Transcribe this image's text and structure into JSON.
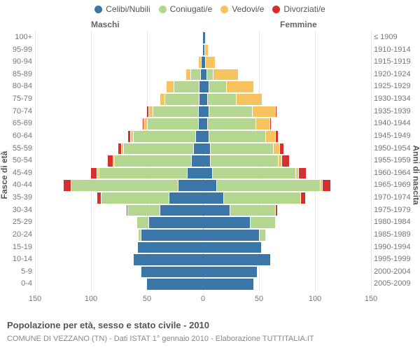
{
  "legend": [
    {
      "label": "Celibi/Nubili",
      "color": "#3b76a8"
    },
    {
      "label": "Coniugati/e",
      "color": "#b4d690"
    },
    {
      "label": "Vedovi/e",
      "color": "#f7c35e"
    },
    {
      "label": "Divorziati/e",
      "color": "#d62f2f"
    }
  ],
  "sex_left_label": "Maschi",
  "sex_right_label": "Femmine",
  "y_axis_left_title": "Fasce di età",
  "y_axis_right_title": "Anni di nascita",
  "title": "Popolazione per età, sesso e stato civile - 2010",
  "subtitle": "COMUNE DI VEZZANO (TN) - Dati ISTAT 1° gennaio 2010 - Elaborazione TUTTITALIA.IT",
  "chart": {
    "type": "population-pyramid",
    "x_max": 150,
    "x_ticks": [
      -150,
      -100,
      -50,
      0,
      50,
      100,
      150
    ],
    "x_tick_labels": [
      "150",
      "100",
      "50",
      "0",
      "50",
      "100",
      "150"
    ],
    "segment_order": [
      "celibi",
      "coniugati",
      "vedovi",
      "divorziati"
    ],
    "segment_colors": {
      "celibi": "#3b76a8",
      "coniugati": "#b4d690",
      "vedovi": "#f7c35e",
      "divorziati": "#d62f2f"
    },
    "bar_border": "#ffffff",
    "background": "#ffffff",
    "grid_color": "#e5e5e5",
    "center_line_color": "#bbbbbb",
    "label_font_size": 11,
    "rows": [
      {
        "age": "100+",
        "birth": "≤ 1909",
        "m": {
          "celibi": 0,
          "coniugati": 0,
          "vedovi": 0,
          "divorziati": 0
        },
        "f": {
          "celibi": 2,
          "coniugati": 0,
          "vedovi": 0,
          "divorziati": 0
        }
      },
      {
        "age": "95-99",
        "birth": "1910-1914",
        "m": {
          "celibi": 0,
          "coniugati": 0,
          "vedovi": 0,
          "divorziati": 0
        },
        "f": {
          "celibi": 1,
          "coniugati": 0,
          "vedovi": 3,
          "divorziati": 0
        }
      },
      {
        "age": "90-94",
        "birth": "1915-1919",
        "m": {
          "celibi": 1,
          "coniugati": 0,
          "vedovi": 2,
          "divorziati": 0
        },
        "f": {
          "celibi": 2,
          "coniugati": 0,
          "vedovi": 8,
          "divorziati": 0
        }
      },
      {
        "age": "85-89",
        "birth": "1920-1924",
        "m": {
          "celibi": 2,
          "coniugati": 8,
          "vedovi": 4,
          "divorziati": 0
        },
        "f": {
          "celibi": 3,
          "coniugati": 5,
          "vedovi": 22,
          "divorziati": 0
        }
      },
      {
        "age": "80-84",
        "birth": "1925-1929",
        "m": {
          "celibi": 3,
          "coniugati": 22,
          "vedovi": 6,
          "divorziati": 0
        },
        "f": {
          "celibi": 5,
          "coniugati": 15,
          "vedovi": 24,
          "divorziati": 0
        }
      },
      {
        "age": "75-79",
        "birth": "1930-1934",
        "m": {
          "celibi": 3,
          "coniugati": 30,
          "vedovi": 4,
          "divorziati": 0
        },
        "f": {
          "celibi": 4,
          "coniugati": 25,
          "vedovi": 22,
          "divorziati": 0
        }
      },
      {
        "age": "70-74",
        "birth": "1935-1939",
        "m": {
          "celibi": 4,
          "coniugati": 40,
          "vedovi": 3,
          "divorziati": 1
        },
        "f": {
          "celibi": 5,
          "coniugati": 38,
          "vedovi": 20,
          "divorziati": 1
        }
      },
      {
        "age": "65-69",
        "birth": "1940-1944",
        "m": {
          "celibi": 4,
          "coniugati": 45,
          "vedovi": 2,
          "divorziati": 1
        },
        "f": {
          "celibi": 4,
          "coniugati": 42,
          "vedovi": 12,
          "divorziati": 1
        }
      },
      {
        "age": "60-64",
        "birth": "1945-1949",
        "m": {
          "celibi": 6,
          "coniugati": 55,
          "vedovi": 2,
          "divorziati": 2
        },
        "f": {
          "celibi": 5,
          "coniugati": 50,
          "vedovi": 8,
          "divorziati": 2
        }
      },
      {
        "age": "55-59",
        "birth": "1950-1954",
        "m": {
          "celibi": 8,
          "coniugati": 62,
          "vedovi": 1,
          "divorziati": 3
        },
        "f": {
          "celibi": 6,
          "coniugati": 56,
          "vedovi": 5,
          "divorziati": 3
        }
      },
      {
        "age": "50-54",
        "birth": "1955-1959",
        "m": {
          "celibi": 10,
          "coniugati": 68,
          "vedovi": 1,
          "divorziati": 4
        },
        "f": {
          "celibi": 6,
          "coniugati": 60,
          "vedovi": 3,
          "divorziati": 6
        }
      },
      {
        "age": "45-49",
        "birth": "1960-1964",
        "m": {
          "celibi": 14,
          "coniugati": 78,
          "vedovi": 1,
          "divorziati": 5
        },
        "f": {
          "celibi": 8,
          "coniugati": 74,
          "vedovi": 2,
          "divorziati": 6
        }
      },
      {
        "age": "40-44",
        "birth": "1965-1969",
        "m": {
          "celibi": 22,
          "coniugati": 95,
          "vedovi": 0,
          "divorziati": 6
        },
        "f": {
          "celibi": 12,
          "coniugati": 92,
          "vedovi": 1,
          "divorziati": 7
        }
      },
      {
        "age": "35-39",
        "birth": "1970-1974",
        "m": {
          "celibi": 30,
          "coniugati": 60,
          "vedovi": 0,
          "divorziati": 3
        },
        "f": {
          "celibi": 18,
          "coniugati": 68,
          "vedovi": 0,
          "divorziati": 4
        }
      },
      {
        "age": "30-34",
        "birth": "1975-1979",
        "m": {
          "celibi": 38,
          "coniugati": 28,
          "vedovi": 0,
          "divorziati": 1
        },
        "f": {
          "celibi": 24,
          "coniugati": 40,
          "vedovi": 0,
          "divorziati": 1
        }
      },
      {
        "age": "25-29",
        "birth": "1980-1984",
        "m": {
          "celibi": 48,
          "coniugati": 10,
          "vedovi": 0,
          "divorziati": 0
        },
        "f": {
          "celibi": 42,
          "coniugati": 22,
          "vedovi": 0,
          "divorziati": 0
        }
      },
      {
        "age": "20-24",
        "birth": "1985-1989",
        "m": {
          "celibi": 55,
          "coniugati": 2,
          "vedovi": 0,
          "divorziati": 0
        },
        "f": {
          "celibi": 50,
          "coniugati": 5,
          "vedovi": 0,
          "divorziati": 0
        }
      },
      {
        "age": "15-19",
        "birth": "1990-1994",
        "m": {
          "celibi": 58,
          "coniugati": 0,
          "vedovi": 0,
          "divorziati": 0
        },
        "f": {
          "celibi": 52,
          "coniugati": 0,
          "vedovi": 0,
          "divorziati": 0
        }
      },
      {
        "age": "10-14",
        "birth": "1995-1999",
        "m": {
          "celibi": 62,
          "coniugati": 0,
          "vedovi": 0,
          "divorziati": 0
        },
        "f": {
          "celibi": 60,
          "coniugati": 0,
          "vedovi": 0,
          "divorziati": 0
        }
      },
      {
        "age": "5-9",
        "birth": "2000-2004",
        "m": {
          "celibi": 55,
          "coniugati": 0,
          "vedovi": 0,
          "divorziati": 0
        },
        "f": {
          "celibi": 48,
          "coniugati": 0,
          "vedovi": 0,
          "divorziati": 0
        }
      },
      {
        "age": "0-4",
        "birth": "2005-2009",
        "m": {
          "celibi": 50,
          "coniugati": 0,
          "vedovi": 0,
          "divorziati": 0
        },
        "f": {
          "celibi": 45,
          "coniugati": 0,
          "vedovi": 0,
          "divorziati": 0
        }
      }
    ]
  }
}
